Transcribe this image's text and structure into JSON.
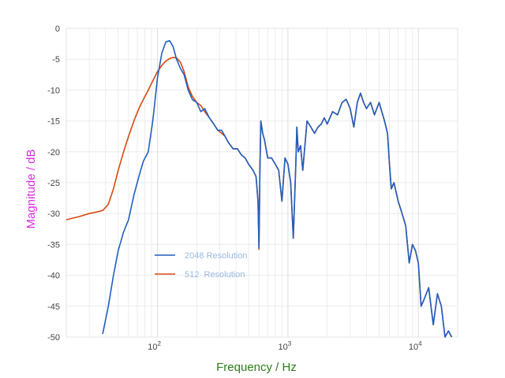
{
  "chart_data": {
    "type": "line",
    "xlabel": "Frequency / Hz",
    "ylabel": "Magnitude / dB",
    "x_scale": "log",
    "xlim": [
      20,
      20000
    ],
    "ylim": [
      -50,
      0
    ],
    "yticks": [
      0,
      -5,
      -10,
      -15,
      -20,
      -25,
      -30,
      -35,
      -40,
      -45,
      -50
    ],
    "ytick_labels": [
      "0",
      "-5",
      "-10",
      "-15",
      "-20",
      "-25",
      "-30",
      "-35",
      "-40",
      "-45",
      "-50"
    ],
    "xticks": [
      {
        "value": 100,
        "base": "10",
        "exp": "2"
      },
      {
        "value": 1000,
        "base": "10",
        "exp": "3"
      },
      {
        "value": 10000,
        "base": "10",
        "exp": "4"
      }
    ],
    "grid": true,
    "legend_position": "center-left",
    "series": [
      {
        "name": "2048 Resolution",
        "color": "#1f5fbf",
        "x": [
          38,
          42,
          46,
          50,
          55,
          60,
          66,
          72,
          78,
          85,
          92,
          100,
          108,
          116,
          124,
          132,
          140,
          150,
          160,
          172,
          185,
          200,
          215,
          230,
          250,
          270,
          290,
          310,
          330,
          350,
          380,
          410,
          440,
          470,
          500,
          540,
          570,
          590,
          600,
          610,
          620,
          640,
          660,
          700,
          750,
          800,
          850,
          900,
          950,
          1000,
          1050,
          1100,
          1150,
          1170,
          1200,
          1250,
          1300,
          1400,
          1500,
          1600,
          1700,
          1800,
          1900,
          2000,
          2200,
          2400,
          2600,
          2800,
          3000,
          3200,
          3400,
          3600,
          3800,
          4000,
          4300,
          4600,
          5000,
          5500,
          5800,
          6000,
          6200,
          6500,
          7000,
          7500,
          8000,
          8500,
          9000,
          9500,
          10000,
          10500,
          11000,
          12000,
          13000,
          14000,
          15000,
          16000,
          17000,
          18000
        ],
        "y": [
          -49.5,
          -45,
          -40,
          -36,
          -33,
          -31,
          -27,
          -24,
          -21.5,
          -20,
          -15,
          -8,
          -4,
          -2.2,
          -2.0,
          -3,
          -5,
          -6.5,
          -7.5,
          -10,
          -11.5,
          -12,
          -13.5,
          -13,
          -14.5,
          -15.5,
          -16.5,
          -16.5,
          -17.5,
          -18.5,
          -19.5,
          -19.5,
          -20.5,
          -21,
          -22,
          -23,
          -24,
          -28,
          -35.5,
          -23,
          -15,
          -17,
          -18,
          -21,
          -21,
          -22,
          -23,
          -28,
          -21,
          -22,
          -25,
          -34,
          -22,
          -16,
          -20,
          -19,
          -23,
          -15,
          -16,
          -17,
          -16,
          -15.5,
          -14.5,
          -15.5,
          -13.5,
          -14,
          -12,
          -11.5,
          -13,
          -16,
          -12,
          -10.5,
          -12,
          -13,
          -12,
          -14,
          -12,
          -15,
          -17,
          -22,
          -26,
          -25,
          -28,
          -30,
          -32,
          -38,
          -35,
          -36,
          -38,
          -45,
          -44,
          -42,
          -48,
          -43,
          -45,
          -50,
          -49,
          -50
        ]
      },
      {
        "name": "512  Resolution",
        "color": "#d9480f",
        "x": [
          20,
          25,
          30,
          35,
          38,
          42,
          46,
          50,
          55,
          60,
          66,
          72,
          78,
          85,
          92,
          100,
          108,
          116,
          124,
          132,
          140,
          150,
          160,
          172,
          185,
          200,
          215,
          230,
          250,
          270,
          290,
          310,
          330,
          350,
          380,
          410,
          440,
          470,
          500,
          540,
          570,
          590,
          600,
          610,
          620,
          640,
          660,
          700,
          750,
          800,
          850,
          900,
          950,
          1000,
          1050,
          1100,
          1150,
          1170,
          1200,
          1250,
          1300,
          1400,
          1500,
          1600,
          1700,
          1800,
          1900,
          2000,
          2200,
          2400,
          2600,
          2800,
          3000,
          3200,
          3400,
          3600,
          3800,
          4000,
          4300,
          4600,
          5000,
          5500,
          5800,
          6000,
          6200,
          6500,
          7000,
          7500,
          8000,
          8500,
          9000,
          9500,
          10000,
          10500,
          11000,
          12000,
          13000,
          14000,
          15000,
          16000,
          17000,
          18000
        ],
        "y": [
          -31,
          -30.5,
          -30,
          -29.7,
          -29.5,
          -28.5,
          -26,
          -23,
          -20,
          -17.5,
          -15,
          -13,
          -11.5,
          -10,
          -8.5,
          -7,
          -6,
          -5.3,
          -4.9,
          -4.7,
          -4.8,
          -5.5,
          -7,
          -9.5,
          -11,
          -12,
          -12.5,
          -13.5,
          -14.5,
          -15.5,
          -16.5,
          -17,
          -17.5,
          -18.5,
          -19.5,
          -19.5,
          -20.5,
          -21,
          -22,
          -23,
          -24,
          -28,
          -35.8,
          -23,
          -15,
          -17,
          -18,
          -21,
          -21,
          -22,
          -23,
          -28,
          -21,
          -22,
          -25,
          -34,
          -22,
          -16,
          -20,
          -19,
          -23,
          -15,
          -16,
          -17,
          -16,
          -15.5,
          -14.5,
          -15.5,
          -13.5,
          -14,
          -12,
          -11.5,
          -13,
          -16,
          -12,
          -10.5,
          -12,
          -13,
          -12,
          -14,
          -12,
          -15,
          -17,
          -22,
          -26,
          -25,
          -28,
          -30,
          -32,
          -38,
          -35,
          -36,
          -38,
          -45,
          -44,
          -42,
          -48,
          -43,
          -45,
          -50,
          -49,
          -50
        ]
      }
    ]
  }
}
